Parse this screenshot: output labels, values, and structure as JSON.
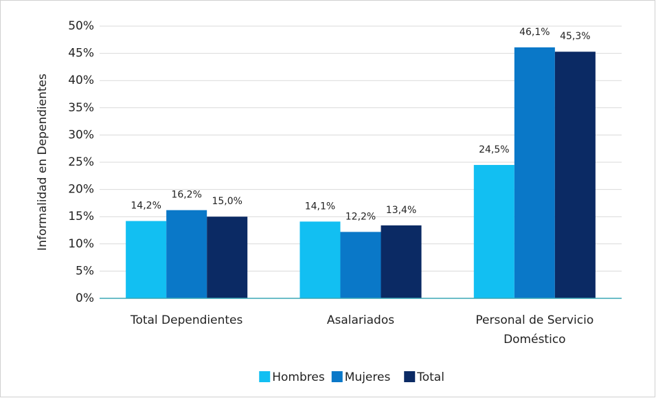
{
  "chart_data": {
    "type": "bar",
    "y_label": "Informalidad en Dependientes",
    "categories": [
      "Total Dependientes",
      "Asalariados",
      "Personal de Servicio Doméstico"
    ],
    "series": [
      {
        "name": "Hombres",
        "color": "#12bff2",
        "values": [
          14.2,
          14.1,
          24.5
        ],
        "value_labels": [
          "14,2%",
          "14,1%",
          "24,5%"
        ]
      },
      {
        "name": "Mujeres",
        "color": "#0a78c8",
        "values": [
          16.2,
          12.2,
          46.1
        ],
        "value_labels": [
          "16,2%",
          "12,2%",
          "46,1%"
        ]
      },
      {
        "name": "Total",
        "color": "#0b2a64",
        "values": [
          15.0,
          13.4,
          45.3
        ],
        "value_labels": [
          "15,0%",
          "13,4%",
          "45,3%"
        ]
      }
    ],
    "ylim": [
      0,
      50
    ],
    "yticks": [
      {
        "value": 0,
        "label": "0%"
      },
      {
        "value": 5,
        "label": "5%"
      },
      {
        "value": 10,
        "label": "10%"
      },
      {
        "value": 15,
        "label": "15%"
      },
      {
        "value": 20,
        "label": "20%"
      },
      {
        "value": 25,
        "label": "25%"
      },
      {
        "value": 30,
        "label": "30%"
      },
      {
        "value": 35,
        "label": "35%"
      },
      {
        "value": 40,
        "label": "40%"
      },
      {
        "value": 45,
        "label": "45%"
      },
      {
        "value": 50,
        "label": "50%"
      }
    ],
    "grid": true,
    "legend": "bottom"
  }
}
